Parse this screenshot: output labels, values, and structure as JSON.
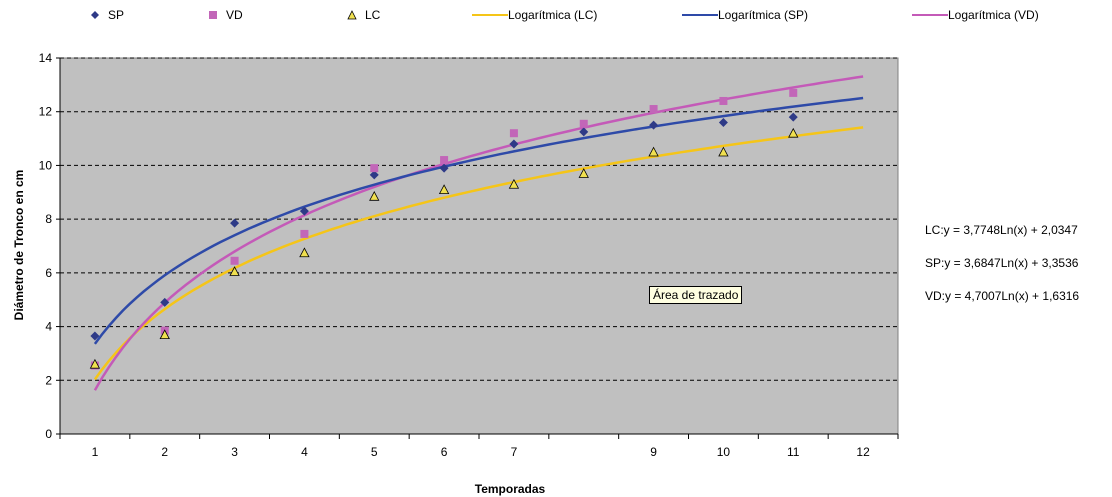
{
  "chart_data": {
    "type": "scatter",
    "xlabel": "Temporadas",
    "ylabel": "Diámetro de Tronco en cm",
    "categories": [
      "1",
      "2",
      "3",
      "4",
      "5",
      "6",
      "7",
      "9",
      "10",
      "11",
      "12"
    ],
    "x": [
      1,
      2,
      3,
      4,
      5,
      6,
      7,
      8,
      9,
      10,
      11,
      12
    ],
    "ylim": [
      0,
      14
    ],
    "yticks": [
      "0",
      "2",
      "4",
      "6",
      "8",
      "10",
      "12",
      "14"
    ],
    "grid": "horizontal dashed",
    "legend_position": "top",
    "background_color": "#c0c0c0",
    "series": [
      {
        "name": "SP",
        "marker": "diamond",
        "color": "#2e3a87",
        "values": [
          3.65,
          4.9,
          7.85,
          8.3,
          9.65,
          9.9,
          10.8,
          11.25,
          11.5,
          11.6,
          11.8
        ]
      },
      {
        "name": "VD",
        "marker": "square",
        "color": "#c266b8",
        "values": [
          2.55,
          3.85,
          6.45,
          7.45,
          9.9,
          10.2,
          11.2,
          11.55,
          12.1,
          12.4,
          12.7
        ]
      },
      {
        "name": "LC",
        "marker": "triangle",
        "color": "#f0e050",
        "values": [
          2.6,
          3.7,
          6.05,
          6.75,
          8.85,
          9.1,
          9.3,
          9.7,
          10.5,
          10.5,
          11.2
        ]
      }
    ],
    "trendlines": [
      {
        "name": "Logarítmica (LC)",
        "color": "#f5c518",
        "a": 3.7748,
        "b": 2.0347,
        "equation": "LC:y = 3,7748Ln(x) + 2,0347"
      },
      {
        "name": "Logarítmica (SP)",
        "color": "#2e4aa8",
        "a": 3.6847,
        "b": 3.3536,
        "equation": "SP:y = 3,6847Ln(x) + 3,3536"
      },
      {
        "name": "Logarítmica (VD)",
        "color": "#c45ab8",
        "a": 4.7007,
        "b": 1.6316,
        "equation": "VD:y = 4,7007Ln(x) + 1,6316"
      }
    ],
    "tooltip": "Área de trazado"
  }
}
